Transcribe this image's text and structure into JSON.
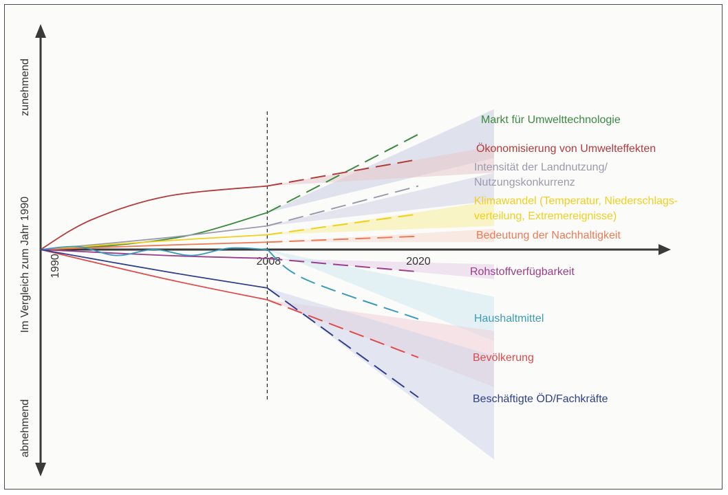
{
  "chart_data": {
    "type": "line",
    "title": "",
    "ylabel": "Im Vergleich zum Jahr 1990",
    "y_top_label": "zunehmend",
    "y_bottom_label": "abnehmend",
    "x_ticks": [
      "1990",
      "2008",
      "2020"
    ],
    "x_origin_year": 1990,
    "x_marker_year": 2008,
    "x_range": [
      1990,
      2020
    ],
    "y_range": [
      -1,
      1
    ],
    "series": [
      {
        "name": "Markt für Umwelttechnologie",
        "color": "#3a8a3e",
        "band_color": "#c8cde0",
        "observed": [
          [
            1990,
            0
          ],
          [
            1996,
            0.03
          ],
          [
            2002,
            0.1
          ],
          [
            2008,
            0.25
          ]
        ],
        "projected": [
          [
            2008,
            0.25
          ],
          [
            2020,
            0.78
          ]
        ],
        "band": [
          0.62,
          0.95
        ]
      },
      {
        "name": "Ökonomisierung von Umwelteffekten",
        "color": "#b33a3a",
        "band_color": "#e8c8cc",
        "observed": [
          [
            1990,
            0
          ],
          [
            1994,
            0.2
          ],
          [
            2000,
            0.36
          ],
          [
            2008,
            0.43
          ]
        ],
        "projected": [
          [
            2008,
            0.43
          ],
          [
            2020,
            0.61
          ]
        ],
        "band": [
          0.52,
          0.7
        ]
      },
      {
        "name": "Intensität der Landnutzung/\nNutzungskonkurrenz",
        "color": "#9a9aae",
        "band_color": "#cfd1e4",
        "observed": [
          [
            1990,
            0
          ],
          [
            2000,
            0.08
          ],
          [
            2008,
            0.16
          ]
        ],
        "projected": [
          [
            2008,
            0.16
          ],
          [
            2020,
            0.43
          ]
        ],
        "band": [
          0.33,
          0.52
        ]
      },
      {
        "name": "Klimawandel (Temperatur, Niederschlags-\nverteilung, Extremereignisse)",
        "color": "#f2cf1a",
        "band_color": "#f6ee9a",
        "observed": [
          [
            1990,
            0
          ],
          [
            2000,
            0.06
          ],
          [
            2008,
            0.1
          ]
        ],
        "projected": [
          [
            2008,
            0.1
          ],
          [
            2020,
            0.24
          ]
        ],
        "band": [
          0.16,
          0.33
        ]
      },
      {
        "name": "Bedeutung der Nachhaltigkeit",
        "color": "#ee7a55",
        "band_color": "#f6dcd0",
        "observed": [
          [
            1990,
            0
          ],
          [
            2000,
            0.03
          ],
          [
            2008,
            0.05
          ]
        ],
        "projected": [
          [
            2008,
            0.05
          ],
          [
            2020,
            0.09
          ]
        ],
        "band": [
          0.05,
          0.14
        ]
      },
      {
        "name": "Rohstoffverfügbarkeit",
        "color": "#9a3d8a",
        "band_color": "#e6d0e6",
        "observed": [
          [
            1990,
            0
          ],
          [
            2000,
            -0.04
          ],
          [
            2008,
            -0.06
          ]
        ],
        "projected": [
          [
            2008,
            -0.06
          ],
          [
            2020,
            -0.15
          ]
        ],
        "band": [
          -0.1,
          -0.2
        ]
      },
      {
        "name": "Haushaltmittel",
        "color": "#3a9abb",
        "band_color": "#cfeaf0",
        "observed": [
          [
            1990,
            0
          ],
          [
            1993,
            0.02
          ],
          [
            1996,
            -0.04
          ],
          [
            1999,
            0.0
          ],
          [
            2002,
            -0.04
          ],
          [
            2005,
            0.01
          ],
          [
            2008,
            0.0
          ]
        ],
        "projected": [
          [
            2008,
            0.0
          ],
          [
            2011,
            -0.2
          ],
          [
            2020,
            -0.47
          ]
        ],
        "band": [
          -0.32,
          -0.62
        ]
      },
      {
        "name": "Bevölkerung",
        "color": "#e04a4a",
        "band_color": "#f3d0d8",
        "observed": [
          [
            1990,
            0
          ],
          [
            2000,
            -0.2
          ],
          [
            2008,
            -0.34
          ]
        ],
        "projected": [
          [
            2008,
            -0.34
          ],
          [
            2020,
            -0.73
          ]
        ],
        "band": [
          -0.55,
          -0.93
        ]
      },
      {
        "name": "Beschäftigte ÖD/Fachkräfte",
        "color": "#2e3f8c",
        "band_color": "#d0d6e8",
        "observed": [
          [
            1990,
            0
          ],
          [
            2000,
            -0.15
          ],
          [
            2008,
            -0.26
          ]
        ],
        "projected": [
          [
            2008,
            -0.26
          ],
          [
            2020,
            -1.0
          ]
        ],
        "band": [
          -0.72,
          -1.42
        ]
      }
    ]
  }
}
